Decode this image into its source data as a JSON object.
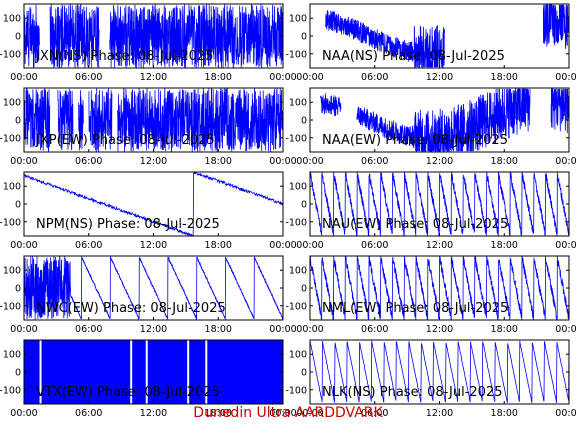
{
  "figure": {
    "footer": "Dunedin Ultra AARDDVARK",
    "footer_color": "#cc0000",
    "trace_color": "#0000ff"
  },
  "chart_data": [
    {
      "type": "line",
      "title": "JXN(NS) Phase: 08-Jul-2025",
      "x_ticks": [
        "00:00",
        "06:00",
        "12:00",
        "18:00",
        "00:00"
      ],
      "y_ticks": [
        "100",
        "0",
        "-100"
      ],
      "ylim": [
        -180,
        180
      ],
      "grid": false,
      "pattern": "dense-gappy",
      "gaps": [
        [
          6,
          10
        ],
        [
          29,
          33
        ]
      ]
    },
    {
      "type": "line",
      "title": "NAA(NS) Phase: 08-Jul-2025",
      "x_ticks": [
        "00:00",
        "06:00",
        "12:00",
        "18:00",
        "00:00"
      ],
      "y_ticks": [
        "100",
        "0",
        "-100"
      ],
      "ylim": [
        -180,
        180
      ],
      "grid": false,
      "pattern": "wander-dense",
      "gaps": [
        [
          0,
          6
        ],
        [
          52,
          90
        ]
      ]
    },
    {
      "type": "line",
      "title": "JXP(EW) Phase: 08-Jul-2025",
      "x_ticks": [
        "00:00",
        "06:00",
        "12:00",
        "18:00",
        "00:00"
      ],
      "y_ticks": [
        "100",
        "0",
        "-100"
      ],
      "ylim": [
        -180,
        180
      ],
      "grid": false,
      "pattern": "dense",
      "gaps": [
        [
          10,
          13
        ],
        [
          19,
          21
        ],
        [
          23,
          25
        ],
        [
          34,
          36
        ]
      ]
    },
    {
      "type": "line",
      "title": "NAA(EW) Phase: 08-Jul-2025",
      "x_ticks": [
        "00:00",
        "06:00",
        "12:00",
        "18:00",
        "00:00"
      ],
      "y_ticks": [
        "100",
        "0",
        "-100"
      ],
      "ylim": [
        -180,
        180
      ],
      "grid": false,
      "pattern": "wander-dense",
      "gaps": [
        [
          0,
          4
        ],
        [
          12,
          18
        ],
        [
          85,
          93
        ]
      ]
    },
    {
      "type": "line",
      "title": "NPM(NS) Phase: 08-Jul-2025",
      "x_ticks": [
        "00:00",
        "06:00",
        "12:00",
        "18:00",
        "00:00"
      ],
      "y_ticks": [
        "100",
        "0",
        "-100"
      ],
      "ylim": [
        -180,
        180
      ],
      "grid": false,
      "pattern": "slow-wrap",
      "gaps": []
    },
    {
      "type": "line",
      "title": "NAU(EW) Phase: 08-Jul-2025",
      "x_ticks": [
        "00:00",
        "06:00",
        "12:00",
        "18:00",
        "00:00"
      ],
      "y_ticks": [
        "100",
        "0",
        "-100"
      ],
      "ylim": [
        -180,
        180
      ],
      "grid": false,
      "pattern": "saw-fast",
      "gaps": []
    },
    {
      "type": "line",
      "title": "NWC(EW) Phase: 08-Jul-2025",
      "x_ticks": [
        "00:00",
        "06:00",
        "12:00",
        "18:00",
        "00:00"
      ],
      "y_ticks": [
        "100",
        "0",
        "-100"
      ],
      "ylim": [
        -180,
        180
      ],
      "grid": false,
      "pattern": "dense-then-saw",
      "gaps": []
    },
    {
      "type": "line",
      "title": "NML(EW) Phase: 08-Jul-2025",
      "x_ticks": [
        "00:00",
        "06:00",
        "12:00",
        "18:00",
        "00:00"
      ],
      "y_ticks": [
        "100",
        "0",
        "-100"
      ],
      "ylim": [
        -180,
        180
      ],
      "grid": false,
      "pattern": "saw-fast",
      "gaps": []
    },
    {
      "type": "line",
      "title": "VTX(EW) Phase: 08-Jul-2025",
      "x_ticks": [
        "00:00",
        "06:00",
        "12:00",
        "18:00",
        "00:00"
      ],
      "y_ticks": [
        "100",
        "0",
        "-100"
      ],
      "ylim": [
        -180,
        180
      ],
      "grid": false,
      "pattern": "solid",
      "gaps": []
    },
    {
      "type": "line",
      "title": "NLK(NS) Phase: 08-Jul-2025",
      "x_ticks": [
        "00:00",
        "06:00",
        "12:00",
        "18:00",
        "00:00"
      ],
      "y_ticks": [
        "100",
        "0",
        "-100"
      ],
      "ylim": [
        -180,
        180
      ],
      "grid": false,
      "pattern": "saw-clean",
      "gaps": []
    }
  ]
}
